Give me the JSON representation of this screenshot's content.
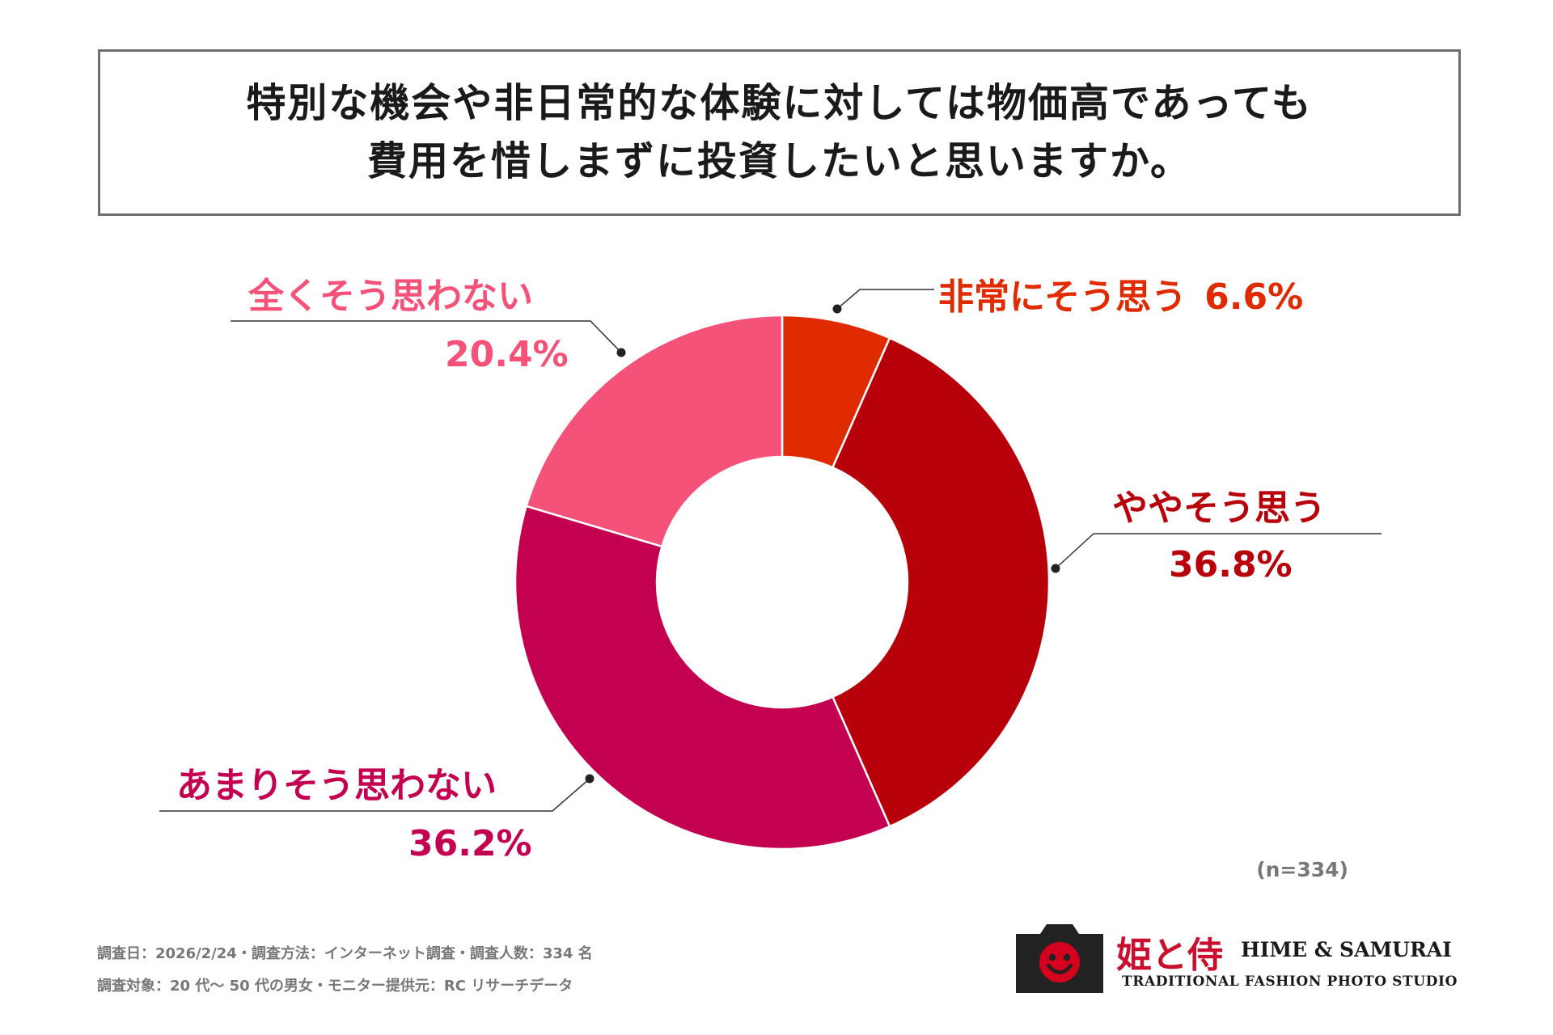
{
  "title": {
    "line1": "特別な機会や非日常的な体験に対しては物価高であっても",
    "line2": "費用を惜しまずに投資したいと思いますか。"
  },
  "chart_data": {
    "type": "pie",
    "variant": "donut",
    "slices": [
      {
        "label": "非常にそう思う",
        "value": 6.6,
        "display": "6.6%",
        "color": "#e02b00"
      },
      {
        "label": "ややそう思う",
        "value": 36.8,
        "display": "36.8%",
        "color": "#b8000b"
      },
      {
        "label": "あまりそう思わない",
        "value": 36.2,
        "display": "36.2%",
        "color": "#c40050"
      },
      {
        "label": "全くそう思わない",
        "value": 20.4,
        "display": "20.4%",
        "color": "#f5527a"
      }
    ],
    "start": "top",
    "direction": "clockwise",
    "legend": "callout labels"
  },
  "sample_note": "(n=334)",
  "footnotes": {
    "line1": "調査日：2026/2/24・調査方法：インターネット調査・調査人数：334 名",
    "line2": "調査対象：20 代〜 50 代の男女・モニター提供元：RC リサーチデータ"
  },
  "logo": {
    "jp": "姫と侍",
    "en": "HIME & SAMURAI",
    "sub": "TRADITIONAL FASHION PHOTO STUDIO",
    "icon": "camera-smile-icon",
    "icon_color": "#222222",
    "face_color": "#d4001e"
  }
}
